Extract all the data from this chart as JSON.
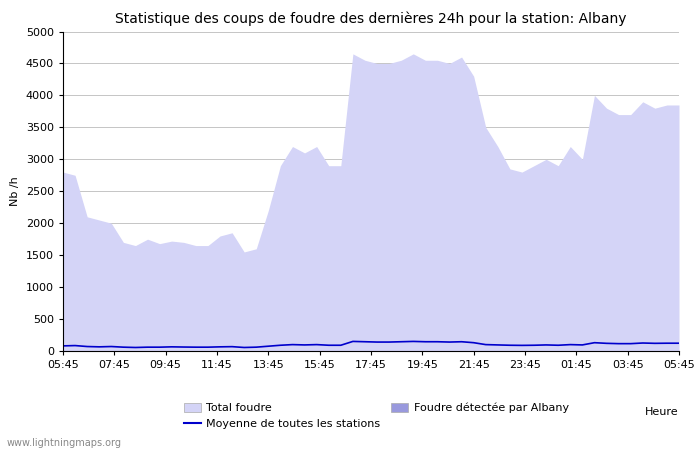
{
  "title": "Statistique des coups de foudre des dernières 24h pour la station: Albany",
  "xlabel": "Heure",
  "ylabel": "Nb /h",
  "watermark": "www.lightningmaps.org",
  "ylim": [
    0,
    5000
  ],
  "yticks": [
    0,
    500,
    1000,
    1500,
    2000,
    2500,
    3000,
    3500,
    4000,
    4500,
    5000
  ],
  "xtick_labels": [
    "05:45",
    "07:45",
    "09:45",
    "11:45",
    "13:45",
    "15:45",
    "17:45",
    "19:45",
    "21:45",
    "23:45",
    "01:45",
    "03:45",
    "05:45"
  ],
  "total_foudre_color": "#d4d4f7",
  "albany_color": "#9999dd",
  "moyenne_color": "#0000cc",
  "background_color": "#ffffff",
  "grid_color": "#bbbbbb",
  "title_fontsize": 10,
  "legend_fontsize": 8,
  "tick_fontsize": 8,
  "total_foudre": [
    2800,
    2750,
    2100,
    2050,
    2000,
    1700,
    1650,
    1750,
    1680,
    1720,
    1700,
    1650,
    1650,
    1800,
    1850,
    1550,
    1600,
    2200,
    2900,
    3200,
    3100,
    3200,
    2900,
    2900,
    4650,
    4550,
    4500,
    4500,
    4550,
    4650,
    4550,
    4550,
    4500,
    4600,
    4300,
    3500,
    3200,
    2850,
    2800,
    2900,
    3000,
    2900,
    3200,
    3000,
    4000,
    3800,
    3700,
    3700,
    3900,
    3800,
    3850,
    3850
  ],
  "albany_foudre": [
    0,
    0,
    0,
    0,
    0,
    0,
    0,
    0,
    0,
    0,
    0,
    0,
    0,
    0,
    0,
    0,
    0,
    0,
    0,
    0,
    0,
    0,
    0,
    0,
    0,
    0,
    0,
    0,
    0,
    0,
    0,
    0,
    0,
    0,
    0,
    0,
    0,
    0,
    0,
    0,
    0,
    0,
    0,
    0,
    0,
    0,
    0,
    0,
    0,
    0,
    0,
    0
  ],
  "moyenne": [
    80,
    85,
    70,
    65,
    70,
    60,
    55,
    60,
    60,
    65,
    62,
    60,
    60,
    65,
    68,
    55,
    60,
    75,
    90,
    100,
    95,
    100,
    90,
    90,
    150,
    145,
    140,
    140,
    145,
    150,
    145,
    145,
    140,
    145,
    130,
    100,
    95,
    90,
    88,
    90,
    95,
    90,
    100,
    95,
    130,
    120,
    115,
    115,
    125,
    120,
    122,
    122
  ]
}
